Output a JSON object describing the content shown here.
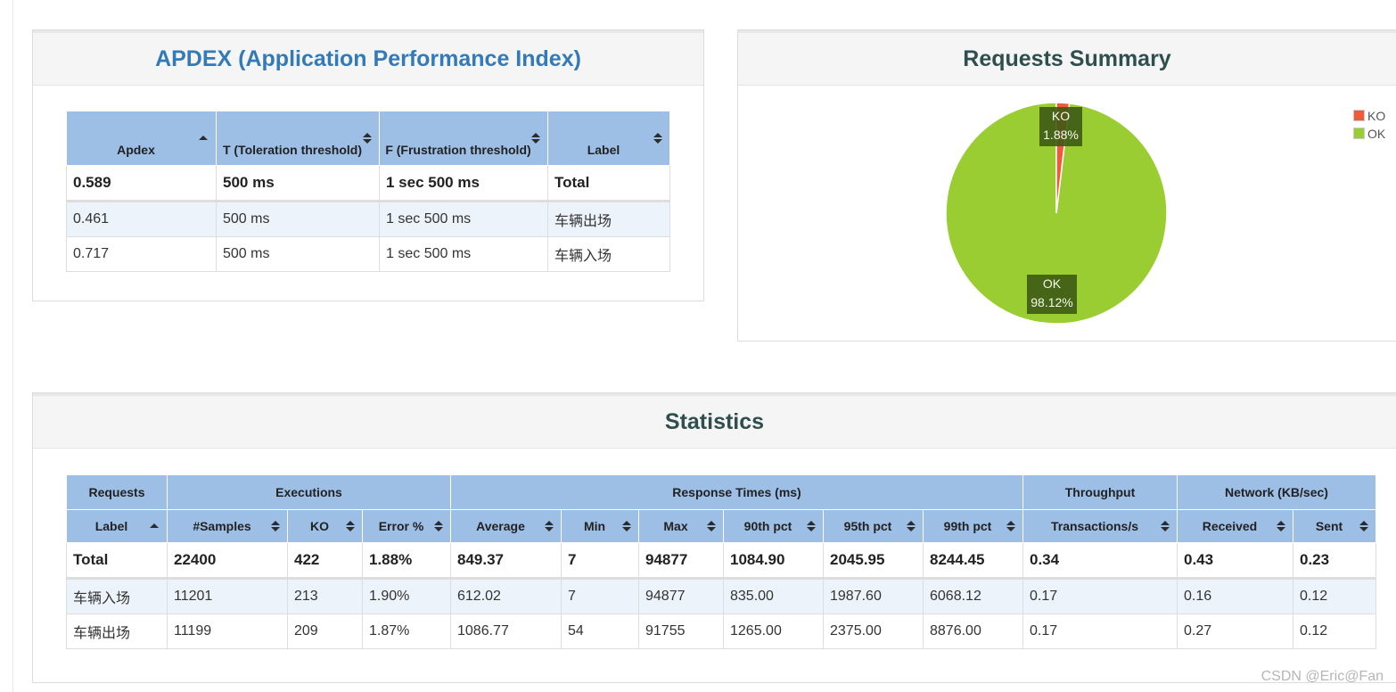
{
  "apdex": {
    "title": "APDEX (Application Performance Index)",
    "headers": [
      "Apdex",
      "T (Toleration threshold)",
      "F (Frustration threshold)",
      "Label"
    ],
    "rows": [
      [
        "0.589",
        "500 ms",
        "1 sec 500 ms",
        "Total"
      ],
      [
        "0.461",
        "500 ms",
        "1 sec 500 ms",
        "车辆出场"
      ],
      [
        "0.717",
        "500 ms",
        "1 sec 500 ms",
        "车辆入场"
      ]
    ]
  },
  "summary": {
    "title": "Requests Summary",
    "legend": [
      {
        "label": "KO",
        "color": "#f05a3c"
      },
      {
        "label": "OK",
        "color": "#9acd32"
      }
    ],
    "slices": [
      {
        "label": "KO",
        "value": "1.88%",
        "percent": 1.88,
        "color": "#f05a3c"
      },
      {
        "label": "OK",
        "value": "98.12%",
        "percent": 98.12,
        "color": "#9acd32"
      }
    ]
  },
  "statistics": {
    "title": "Statistics",
    "groups": [
      "Requests",
      "Executions",
      "Response Times (ms)",
      "Throughput",
      "Network (KB/sec)"
    ],
    "columns": [
      "Label",
      "#Samples",
      "KO",
      "Error %",
      "Average",
      "Min",
      "Max",
      "90th pct",
      "95th pct",
      "99th pct",
      "Transactions/s",
      "Received",
      "Sent"
    ],
    "rows": [
      [
        "Total",
        "22400",
        "422",
        "1.88%",
        "849.37",
        "7",
        "94877",
        "1084.90",
        "2045.95",
        "8244.45",
        "0.34",
        "0.43",
        "0.23"
      ],
      [
        "车辆入场",
        "11201",
        "213",
        "1.90%",
        "612.02",
        "7",
        "94877",
        "835.00",
        "1987.60",
        "6068.12",
        "0.17",
        "0.16",
        "0.12"
      ],
      [
        "车辆出场",
        "11199",
        "209",
        "1.87%",
        "1086.77",
        "54",
        "91755",
        "1265.00",
        "2375.00",
        "8876.00",
        "0.17",
        "0.27",
        "0.12"
      ]
    ]
  },
  "watermark": "CSDN @Eric@Fan"
}
